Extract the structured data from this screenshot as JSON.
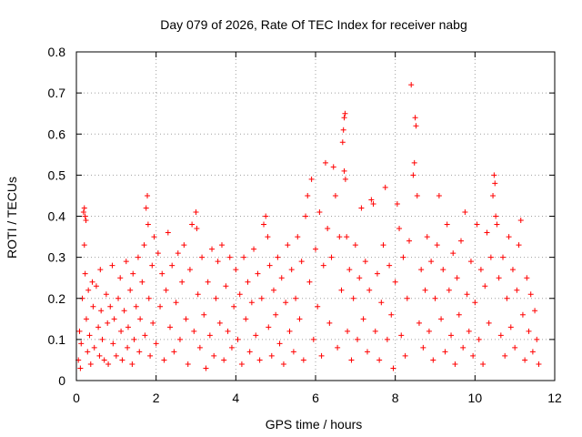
{
  "chart_data": {
    "type": "scatter",
    "title": "Day 079 of 2026, Rate Of TEC Index for receiver nabg",
    "xlabel": "GPS time / hours",
    "ylabel": "ROTI / TECUs",
    "xlim": [
      0,
      12
    ],
    "ylim": [
      0,
      0.8
    ],
    "x_ticks": [
      "0",
      "2",
      "4",
      "6",
      "8",
      "10",
      "12"
    ],
    "y_ticks": [
      "0",
      "0.1",
      "0.2",
      "0.3",
      "0.4",
      "0.5",
      "0.6",
      "0.7",
      "0.8"
    ],
    "grid": true,
    "marker": "+",
    "color": "#ff0000",
    "series": [
      {
        "points": [
          [
            0.05,
            0.05
          ],
          [
            0.08,
            0.12
          ],
          [
            0.1,
            0.03
          ],
          [
            0.12,
            0.09
          ],
          [
            0.15,
            0.2
          ],
          [
            0.18,
            0.41
          ],
          [
            0.2,
            0.42
          ],
          [
            0.22,
            0.4
          ],
          [
            0.24,
            0.39
          ],
          [
            0.2,
            0.33
          ],
          [
            0.22,
            0.26
          ],
          [
            0.25,
            0.15
          ],
          [
            0.28,
            0.07
          ],
          [
            0.3,
            0.22
          ],
          [
            0.33,
            0.11
          ],
          [
            0.36,
            0.04
          ],
          [
            0.4,
            0.24
          ],
          [
            0.42,
            0.18
          ],
          [
            0.45,
            0.08
          ],
          [
            0.5,
            0.23
          ],
          [
            0.55,
            0.13
          ],
          [
            0.58,
            0.06
          ],
          [
            0.6,
            0.27
          ],
          [
            0.62,
            0.17
          ],
          [
            0.65,
            0.1
          ],
          [
            0.7,
            0.05
          ],
          [
            0.75,
            0.21
          ],
          [
            0.78,
            0.14
          ],
          [
            0.8,
            0.04
          ],
          [
            0.85,
            0.18
          ],
          [
            0.9,
            0.28
          ],
          [
            0.92,
            0.09
          ],
          [
            0.95,
            0.15
          ],
          [
            1.0,
            0.06
          ],
          [
            1.05,
            0.2
          ],
          [
            1.1,
            0.25
          ],
          [
            1.12,
            0.12
          ],
          [
            1.15,
            0.05
          ],
          [
            1.2,
            0.17
          ],
          [
            1.25,
            0.29
          ],
          [
            1.28,
            0.08
          ],
          [
            1.3,
            0.13
          ],
          [
            1.35,
            0.22
          ],
          [
            1.4,
            0.04
          ],
          [
            1.42,
            0.26
          ],
          [
            1.45,
            0.1
          ],
          [
            1.5,
            0.18
          ],
          [
            1.55,
            0.3
          ],
          [
            1.58,
            0.07
          ],
          [
            1.6,
            0.15
          ],
          [
            1.65,
            0.24
          ],
          [
            1.7,
            0.33
          ],
          [
            1.72,
            0.11
          ],
          [
            1.75,
            0.42
          ],
          [
            1.78,
            0.45
          ],
          [
            1.8,
            0.38
          ],
          [
            1.82,
            0.2
          ],
          [
            1.85,
            0.06
          ],
          [
            1.9,
            0.28
          ],
          [
            1.92,
            0.14
          ],
          [
            1.95,
            0.35
          ],
          [
            2.0,
            0.09
          ],
          [
            2.05,
            0.31
          ],
          [
            2.1,
            0.18
          ],
          [
            2.15,
            0.26
          ],
          [
            2.2,
            0.05
          ],
          [
            2.25,
            0.22
          ],
          [
            2.3,
            0.36
          ],
          [
            2.35,
            0.13
          ],
          [
            2.4,
            0.28
          ],
          [
            2.45,
            0.07
          ],
          [
            2.5,
            0.19
          ],
          [
            2.55,
            0.31
          ],
          [
            2.6,
            0.1
          ],
          [
            2.65,
            0.24
          ],
          [
            2.7,
            0.33
          ],
          [
            2.75,
            0.15
          ],
          [
            2.8,
            0.04
          ],
          [
            2.85,
            0.27
          ],
          [
            2.9,
            0.38
          ],
          [
            2.95,
            0.12
          ],
          [
            3.0,
            0.41
          ],
          [
            3.02,
            0.37
          ],
          [
            3.05,
            0.21
          ],
          [
            3.1,
            0.08
          ],
          [
            3.15,
            0.3
          ],
          [
            3.2,
            0.16
          ],
          [
            3.25,
            0.03
          ],
          [
            3.3,
            0.24
          ],
          [
            3.35,
            0.11
          ],
          [
            3.4,
            0.32
          ],
          [
            3.45,
            0.06
          ],
          [
            3.5,
            0.2
          ],
          [
            3.55,
            0.29
          ],
          [
            3.6,
            0.14
          ],
          [
            3.65,
            0.33
          ],
          [
            3.7,
            0.05
          ],
          [
            3.75,
            0.23
          ],
          [
            3.8,
            0.12
          ],
          [
            3.85,
            0.3
          ],
          [
            3.9,
            0.08
          ],
          [
            3.95,
            0.18
          ],
          [
            4.0,
            0.27
          ],
          [
            4.05,
            0.1
          ],
          [
            4.1,
            0.21
          ],
          [
            4.15,
            0.04
          ],
          [
            4.2,
            0.3
          ],
          [
            4.25,
            0.15
          ],
          [
            4.3,
            0.24
          ],
          [
            4.35,
            0.07
          ],
          [
            4.4,
            0.19
          ],
          [
            4.45,
            0.32
          ],
          [
            4.5,
            0.11
          ],
          [
            4.55,
            0.26
          ],
          [
            4.6,
            0.05
          ],
          [
            4.65,
            0.2
          ],
          [
            4.7,
            0.38
          ],
          [
            4.75,
            0.4
          ],
          [
            4.8,
            0.35
          ],
          [
            4.82,
            0.13
          ],
          [
            4.85,
            0.28
          ],
          [
            4.9,
            0.06
          ],
          [
            4.95,
            0.22
          ],
          [
            5.0,
            0.16
          ],
          [
            5.05,
            0.3
          ],
          [
            5.1,
            0.09
          ],
          [
            5.15,
            0.25
          ],
          [
            5.2,
            0.04
          ],
          [
            5.25,
            0.19
          ],
          [
            5.3,
            0.33
          ],
          [
            5.35,
            0.12
          ],
          [
            5.4,
            0.27
          ],
          [
            5.45,
            0.07
          ],
          [
            5.5,
            0.2
          ],
          [
            5.55,
            0.35
          ],
          [
            5.6,
            0.15
          ],
          [
            5.65,
            0.29
          ],
          [
            5.7,
            0.05
          ],
          [
            5.75,
            0.4
          ],
          [
            5.8,
            0.45
          ],
          [
            5.85,
            0.24
          ],
          [
            5.9,
            0.49
          ],
          [
            5.95,
            0.1
          ],
          [
            6.0,
            0.32
          ],
          [
            6.05,
            0.18
          ],
          [
            6.1,
            0.41
          ],
          [
            6.15,
            0.06
          ],
          [
            6.2,
            0.28
          ],
          [
            6.25,
            0.53
          ],
          [
            6.3,
            0.37
          ],
          [
            6.35,
            0.14
          ],
          [
            6.4,
            0.3
          ],
          [
            6.45,
            0.52
          ],
          [
            6.5,
            0.45
          ],
          [
            6.55,
            0.08
          ],
          [
            6.6,
            0.35
          ],
          [
            6.65,
            0.22
          ],
          [
            6.68,
            0.58
          ],
          [
            6.7,
            0.61
          ],
          [
            6.72,
            0.64
          ],
          [
            6.74,
            0.65
          ],
          [
            6.72,
            0.51
          ],
          [
            6.75,
            0.49
          ],
          [
            6.78,
            0.35
          ],
          [
            6.8,
            0.12
          ],
          [
            6.85,
            0.27
          ],
          [
            6.9,
            0.05
          ],
          [
            6.95,
            0.2
          ],
          [
            7.0,
            0.33
          ],
          [
            7.05,
            0.1
          ],
          [
            7.1,
            0.25
          ],
          [
            7.15,
            0.42
          ],
          [
            7.2,
            0.15
          ],
          [
            7.25,
            0.29
          ],
          [
            7.3,
            0.07
          ],
          [
            7.35,
            0.22
          ],
          [
            7.4,
            0.44
          ],
          [
            7.45,
            0.43
          ],
          [
            7.5,
            0.12
          ],
          [
            7.55,
            0.26
          ],
          [
            7.6,
            0.05
          ],
          [
            7.65,
            0.19
          ],
          [
            7.7,
            0.33
          ],
          [
            7.75,
            0.47
          ],
          [
            7.8,
            0.1
          ],
          [
            7.85,
            0.28
          ],
          [
            7.9,
            0.16
          ],
          [
            7.95,
            0.03
          ],
          [
            8.0,
            0.24
          ],
          [
            8.05,
            0.43
          ],
          [
            8.1,
            0.37
          ],
          [
            8.15,
            0.11
          ],
          [
            8.2,
            0.3
          ],
          [
            8.25,
            0.06
          ],
          [
            8.3,
            0.2
          ],
          [
            8.35,
            0.34
          ],
          [
            8.4,
            0.72
          ],
          [
            8.45,
            0.5
          ],
          [
            8.48,
            0.53
          ],
          [
            8.5,
            0.64
          ],
          [
            8.52,
            0.62
          ],
          [
            8.55,
            0.45
          ],
          [
            8.6,
            0.14
          ],
          [
            8.65,
            0.27
          ],
          [
            8.7,
            0.08
          ],
          [
            8.75,
            0.22
          ],
          [
            8.8,
            0.35
          ],
          [
            8.85,
            0.12
          ],
          [
            8.9,
            0.29
          ],
          [
            8.95,
            0.05
          ],
          [
            9.0,
            0.2
          ],
          [
            9.05,
            0.33
          ],
          [
            9.1,
            0.45
          ],
          [
            9.15,
            0.15
          ],
          [
            9.2,
            0.27
          ],
          [
            9.25,
            0.07
          ],
          [
            9.3,
            0.38
          ],
          [
            9.35,
            0.22
          ],
          [
            9.4,
            0.11
          ],
          [
            9.45,
            0.31
          ],
          [
            9.5,
            0.04
          ],
          [
            9.55,
            0.25
          ],
          [
            9.6,
            0.16
          ],
          [
            9.65,
            0.34
          ],
          [
            9.7,
            0.08
          ],
          [
            9.75,
            0.41
          ],
          [
            9.8,
            0.21
          ],
          [
            9.85,
            0.12
          ],
          [
            9.9,
            0.29
          ],
          [
            9.95,
            0.06
          ],
          [
            10.0,
            0.19
          ],
          [
            10.05,
            0.38
          ],
          [
            10.1,
            0.1
          ],
          [
            10.15,
            0.27
          ],
          [
            10.2,
            0.04
          ],
          [
            10.25,
            0.23
          ],
          [
            10.3,
            0.36
          ],
          [
            10.35,
            0.14
          ],
          [
            10.4,
            0.3
          ],
          [
            10.45,
            0.45
          ],
          [
            10.48,
            0.5
          ],
          [
            10.5,
            0.48
          ],
          [
            10.52,
            0.4
          ],
          [
            10.55,
            0.38
          ],
          [
            10.6,
            0.25
          ],
          [
            10.65,
            0.11
          ],
          [
            10.7,
            0.3
          ],
          [
            10.75,
            0.06
          ],
          [
            10.8,
            0.2
          ],
          [
            10.85,
            0.35
          ],
          [
            10.9,
            0.13
          ],
          [
            10.95,
            0.27
          ],
          [
            11.0,
            0.08
          ],
          [
            11.05,
            0.22
          ],
          [
            11.1,
            0.33
          ],
          [
            11.15,
            0.39
          ],
          [
            11.2,
            0.16
          ],
          [
            11.25,
            0.05
          ],
          [
            11.3,
            0.25
          ],
          [
            11.35,
            0.12
          ],
          [
            11.4,
            0.21
          ],
          [
            11.45,
            0.07
          ],
          [
            11.5,
            0.17
          ],
          [
            11.55,
            0.1
          ],
          [
            11.6,
            0.04
          ]
        ]
      }
    ]
  }
}
